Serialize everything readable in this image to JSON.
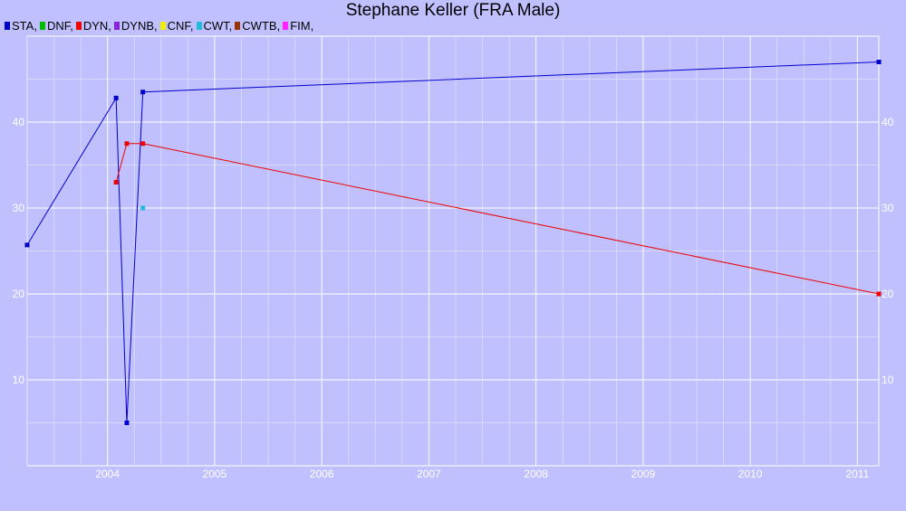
{
  "chart_data": {
    "type": "line",
    "title": "Stephane Keller (FRA Male)",
    "xlabel": "",
    "ylabel": "",
    "xlim": [
      2003.25,
      2011.2
    ],
    "ylim": [
      0,
      50
    ],
    "x_ticks": [
      2004,
      2005,
      2006,
      2007,
      2008,
      2009,
      2010,
      2011
    ],
    "x_tick_labels": [
      "2004",
      "2005",
      "2006",
      "2007",
      "2008",
      "2009",
      "2010",
      "2011"
    ],
    "y_ticks": [
      10,
      20,
      30,
      40
    ],
    "y_tick_labels": [
      "10",
      "20",
      "30",
      "40"
    ],
    "grid": true,
    "legend_position": "top-left",
    "legend": [
      {
        "name": "STA",
        "label": "STA,",
        "color": "#0000cc"
      },
      {
        "name": "DNF",
        "label": "DNF,",
        "color": "#00bb00"
      },
      {
        "name": "DYN",
        "label": "DYN,",
        "color": "#ee0000"
      },
      {
        "name": "DYNB",
        "label": "DYNB,",
        "color": "#8822dd"
      },
      {
        "name": "CNF",
        "label": "CNF,",
        "color": "#eeee00"
      },
      {
        "name": "CWT",
        "label": "CWT,",
        "color": "#22bbdd"
      },
      {
        "name": "CWTB",
        "label": "CWTB,",
        "color": "#993300"
      },
      {
        "name": "FIM",
        "label": "FIM,",
        "color": "#ff22ff"
      }
    ],
    "series": [
      {
        "name": "STA",
        "color": "#0000cc",
        "points": [
          {
            "x": 2003.25,
            "y": 25.7
          },
          {
            "x": 2004.08,
            "y": 42.8
          },
          {
            "x": 2004.18,
            "y": 5.0
          },
          {
            "x": 2004.33,
            "y": 43.5
          },
          {
            "x": 2011.2,
            "y": 47.0
          }
        ]
      },
      {
        "name": "DYN",
        "color": "#ee0000",
        "points": [
          {
            "x": 2004.08,
            "y": 33.0
          },
          {
            "x": 2004.18,
            "y": 37.5
          },
          {
            "x": 2004.33,
            "y": 37.5
          },
          {
            "x": 2011.2,
            "y": 20.0
          }
        ]
      },
      {
        "name": "CWT",
        "color": "#22bbdd",
        "points": [
          {
            "x": 2004.33,
            "y": 30.0
          }
        ]
      }
    ]
  }
}
